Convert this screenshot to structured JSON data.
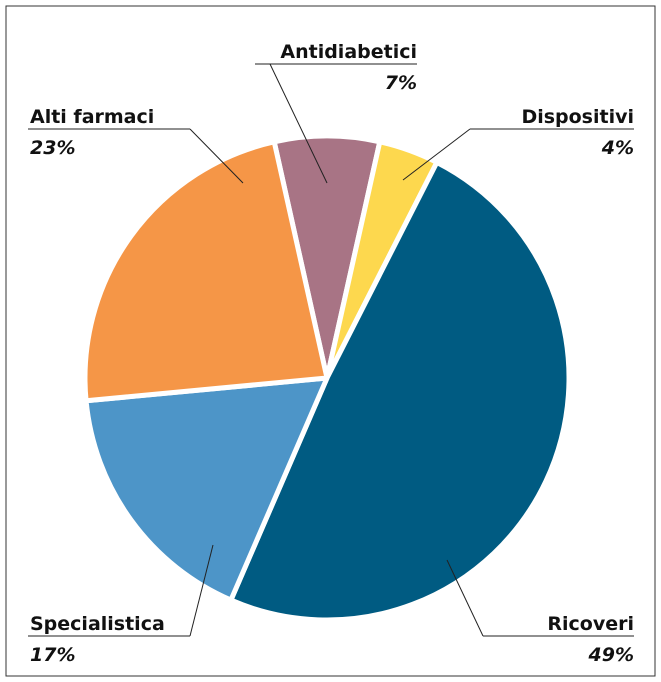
{
  "chart_data": {
    "type": "pie",
    "categories": [
      "Antidiabetici",
      "Dispositivi",
      "Ricoveri",
      "Specialistica",
      "Alti farmaci"
    ],
    "values": [
      7,
      4,
      49,
      17,
      23
    ],
    "value_labels": [
      "7%",
      "4%",
      "49%",
      "17%",
      "23%"
    ],
    "colors": [
      "#a87485",
      "#fdd84e",
      "#005b82",
      "#4d95c8",
      "#f59647"
    ]
  }
}
